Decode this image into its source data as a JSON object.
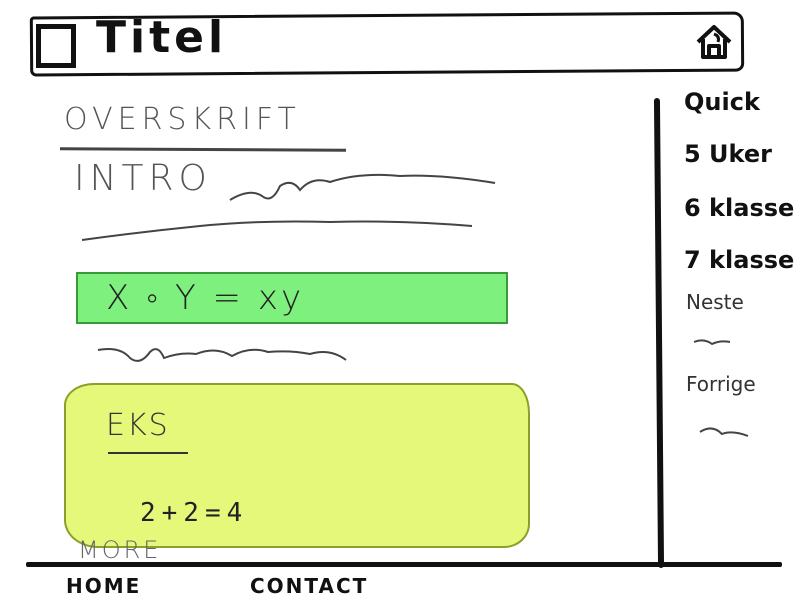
{
  "header": {
    "title": "Titel",
    "app_icon": "square-icon",
    "home_icon": "home-icon"
  },
  "main": {
    "heading": "OVERSKRIFT",
    "intro": "INTRO",
    "formula": "X ◦ Y = xy",
    "formula_box_color": "#7ef07e",
    "example": {
      "label": "EKS",
      "equation": "2+2=4",
      "box_color": "#e6f87a"
    },
    "more_link": "MORE"
  },
  "sidebar": {
    "items": [
      {
        "label": "Quick"
      },
      {
        "label": "5 Uker"
      },
      {
        "label": "6 klasse"
      },
      {
        "label": "7 klasse"
      }
    ],
    "sections": [
      {
        "label": "Neste"
      },
      {
        "label": "Forrige"
      }
    ]
  },
  "footer": {
    "links": [
      {
        "label": "HOME"
      },
      {
        "label": "CONTACT"
      }
    ]
  }
}
